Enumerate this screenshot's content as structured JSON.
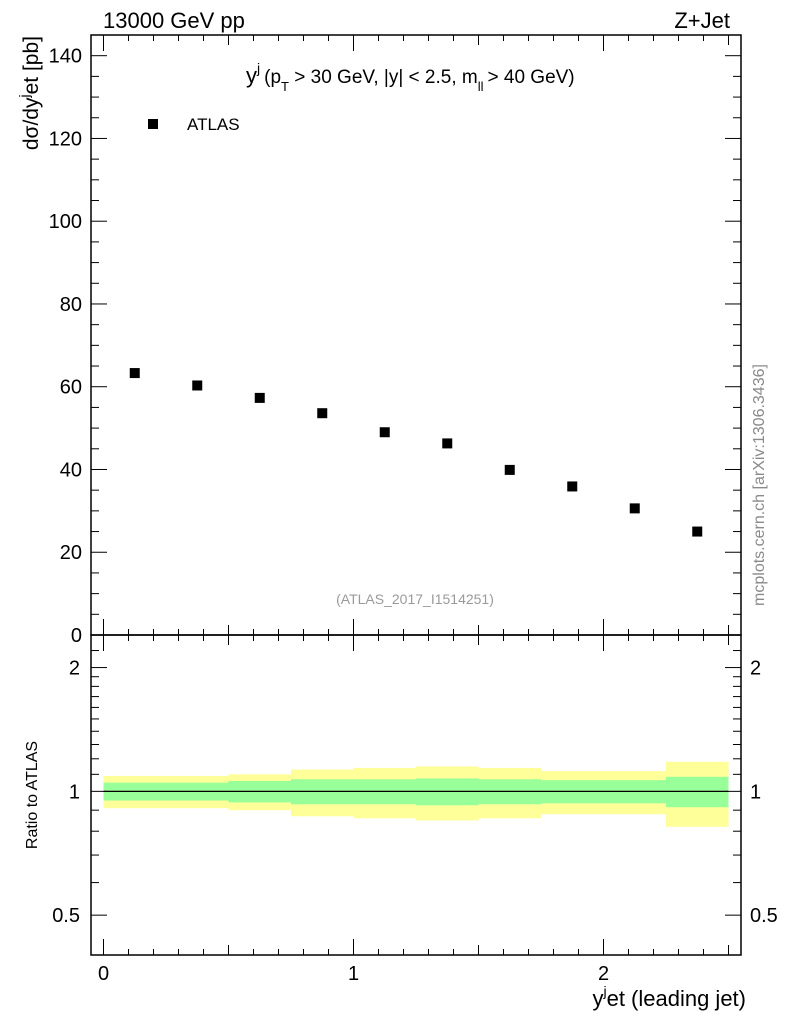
{
  "header": {
    "left": "13000 GeV pp",
    "right": "Z+Jet"
  },
  "side_label": "mcplots.cern.ch [arXiv:1306.3436]",
  "watermark": "(ATLAS_2017_I1514251)",
  "colors": {
    "band_inner": "#99ff99",
    "band_outer": "#ffff99",
    "marker": "#000000"
  },
  "chart_data": {
    "type": "scatter",
    "title": "y^j (p_T > 30 GeV, |y| < 2.5, m_ll > 40 GeV)",
    "title_parts": {
      "y": "y",
      "y_sup": "j",
      "p": "p",
      "p_sub": "T",
      "mid": " > 30 GeV, |y| < 2.5, m",
      "m_sub": "ll",
      "end": "> 40 GeV)",
      "open": "("
    },
    "xlabel": "y^jet (leading jet)",
    "xlabel_parts": {
      "y": "y",
      "sup": "j",
      "rest": "et (leading jet)"
    },
    "ylabel": "dσ/dy^jet [pb]",
    "ylabel_parts": {
      "a": "dσ/dy",
      "sup": "j",
      "b": "et [pb]"
    },
    "xlim": [
      -0.05,
      2.55
    ],
    "ylim": [
      0,
      145
    ],
    "x_ticks": [
      "0",
      "1",
      "2"
    ],
    "y_ticks": [
      "0",
      "20",
      "40",
      "60",
      "80",
      "100",
      "120",
      "140"
    ],
    "legend": {
      "label": "ATLAS",
      "position": "top-left"
    },
    "series": [
      {
        "name": "ATLAS",
        "x": [
          0.125,
          0.375,
          0.625,
          0.875,
          1.125,
          1.375,
          1.625,
          1.875,
          2.125,
          2.375
        ],
        "y": [
          63.3,
          60.3,
          57.3,
          53.6,
          49.0,
          46.3,
          39.9,
          35.9,
          30.6,
          25.0
        ]
      }
    ],
    "ratio": {
      "ylabel": "Ratio to ATLAS",
      "ylim": [
        0.4,
        2.4
      ],
      "y_ticks": [
        "0.5",
        "1",
        "2"
      ],
      "bins": [
        [
          0.0,
          0.5,
          0.95,
          1.05,
          0.91,
          1.09
        ],
        [
          0.5,
          0.75,
          0.94,
          1.06,
          0.9,
          1.1
        ],
        [
          0.75,
          1.0,
          0.93,
          1.07,
          0.87,
          1.13
        ],
        [
          1.0,
          1.25,
          0.93,
          1.07,
          0.86,
          1.14
        ],
        [
          1.25,
          1.5,
          0.925,
          1.075,
          0.85,
          1.15
        ],
        [
          1.5,
          1.75,
          0.93,
          1.07,
          0.86,
          1.14
        ],
        [
          1.75,
          2.0,
          0.935,
          1.065,
          0.88,
          1.12
        ],
        [
          2.0,
          2.25,
          0.935,
          1.065,
          0.88,
          1.12
        ],
        [
          2.25,
          2.5,
          0.915,
          1.085,
          0.82,
          1.18
        ]
      ],
      "bin_fields": [
        "xlo",
        "xhi",
        "inner_lo",
        "inner_hi",
        "outer_lo",
        "outer_hi"
      ]
    }
  }
}
